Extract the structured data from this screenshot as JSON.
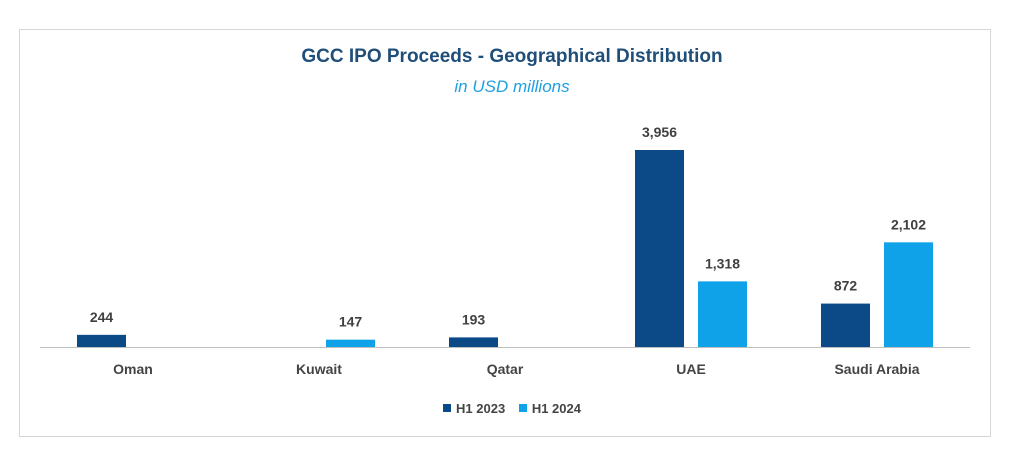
{
  "chart_data": {
    "type": "bar",
    "title": "GCC IPO Proceeds - Geographical Distribution",
    "subtitle": "in USD millions",
    "categories": [
      "Oman",
      "Kuwait",
      "Qatar",
      "UAE",
      "Saudi Arabia"
    ],
    "series": [
      {
        "name": "H1 2023",
        "color": "#0b4a87",
        "values": [
          244,
          null,
          193,
          3956,
          872
        ],
        "labels": [
          "244",
          "",
          "193",
          "3,956",
          "872"
        ]
      },
      {
        "name": "H1 2024",
        "color": "#10a2e8",
        "values": [
          null,
          147,
          null,
          1318,
          2102
        ],
        "labels": [
          "",
          "147",
          "",
          "1,318",
          "2,102"
        ]
      }
    ],
    "ylim": [
      0,
      3956
    ],
    "grid": false,
    "legend_position": "bottom"
  }
}
